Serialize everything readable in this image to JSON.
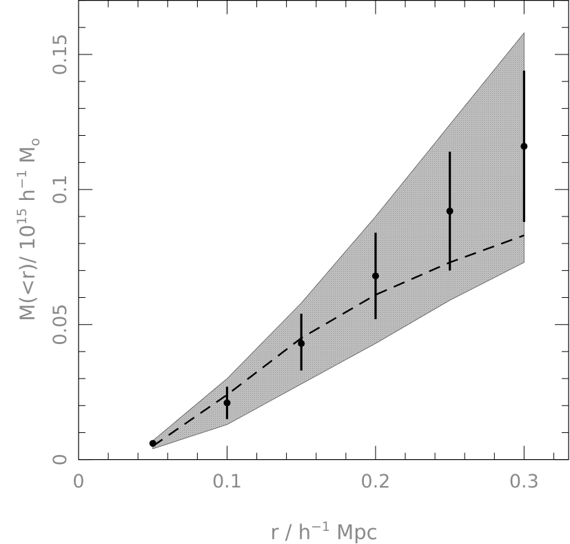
{
  "chart_data": {
    "type": "line",
    "title": "",
    "xlabel": "r / h",
    "xlabel_sup": "−1",
    "xlabel_suffix": " Mpc",
    "ylabel_prefix": "M(<r)/ 10",
    "ylabel_sup1": "15",
    "ylabel_mid": " h",
    "ylabel_sup2": "−1",
    "ylabel_mid2": " M",
    "ylabel_sub": "o",
    "xlim": [
      0,
      0.33
    ],
    "ylim": [
      0,
      0.17
    ],
    "x_major_ticks": [
      0,
      0.1,
      0.2,
      0.3
    ],
    "x_tick_labels": [
      "0",
      "0.1",
      "0.2",
      "0.3"
    ],
    "y_major_ticks": [
      0,
      0.05,
      0.1,
      0.15
    ],
    "y_tick_labels": [
      "0",
      "0.05",
      "0.1",
      "0.15"
    ],
    "x_minor_step": 0.02,
    "y_minor_step": 0.01,
    "grid": false,
    "band": {
      "color": "#b8b8b8",
      "x": [
        0.05,
        0.1,
        0.15,
        0.2,
        0.25,
        0.3
      ],
      "upper": [
        0.007,
        0.03,
        0.058,
        0.09,
        0.124,
        0.158
      ],
      "lower": [
        0.004,
        0.013,
        0.028,
        0.043,
        0.059,
        0.073
      ]
    },
    "model_line": {
      "style": "dashed",
      "x": [
        0.05,
        0.1,
        0.15,
        0.2,
        0.25,
        0.3
      ],
      "y": [
        0.005,
        0.024,
        0.045,
        0.061,
        0.073,
        0.083
      ]
    },
    "data_points": {
      "x": [
        0.05,
        0.1,
        0.15,
        0.2,
        0.25,
        0.3
      ],
      "y": [
        0.006,
        0.021,
        0.043,
        0.068,
        0.092,
        0.116
      ],
      "y_err_low": [
        0.005,
        0.015,
        0.033,
        0.052,
        0.07,
        0.088
      ],
      "y_err_high": [
        0.007,
        0.027,
        0.054,
        0.084,
        0.114,
        0.144
      ]
    }
  }
}
